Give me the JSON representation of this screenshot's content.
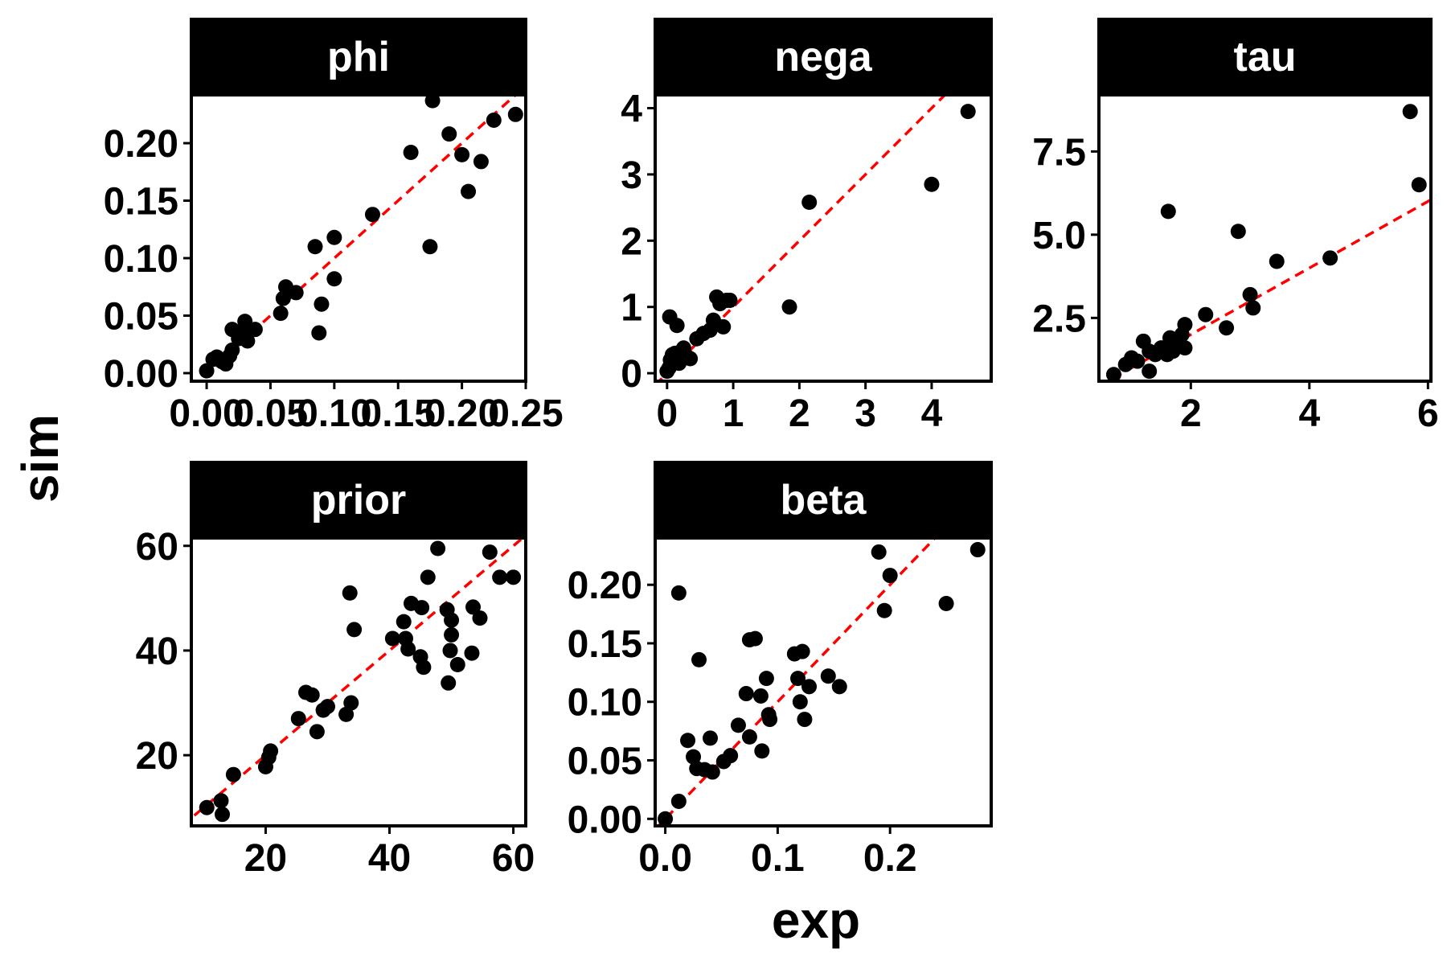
{
  "chart_data": {
    "type": "scatter",
    "xlabel": "exp",
    "ylabel": "sim",
    "colors": {
      "points": "#000000",
      "reference_line": "#ff0000",
      "strip": "#000000",
      "strip_text": "#ffffff"
    },
    "reference_line": "identity (dashed)",
    "grid": false,
    "panels": [
      {
        "title": "phi",
        "xlim": [
          -0.012,
          0.25
        ],
        "ylim": [
          -0.007,
          0.242
        ],
        "xticks": [
          "0.00",
          "0.05",
          "0.10",
          "0.15",
          "0.20",
          "0.25"
        ],
        "yticks": [
          "0.00",
          "0.05",
          "0.10",
          "0.15",
          "0.20"
        ],
        "points": [
          [
            0.0,
            0.002
          ],
          [
            0.005,
            0.012
          ],
          [
            0.008,
            0.014
          ],
          [
            0.012,
            0.01
          ],
          [
            0.015,
            0.008
          ],
          [
            0.018,
            0.015
          ],
          [
            0.02,
            0.02
          ],
          [
            0.02,
            0.038
          ],
          [
            0.025,
            0.03
          ],
          [
            0.028,
            0.035
          ],
          [
            0.03,
            0.045
          ],
          [
            0.032,
            0.028
          ],
          [
            0.038,
            0.038
          ],
          [
            0.058,
            0.052
          ],
          [
            0.06,
            0.065
          ],
          [
            0.062,
            0.075
          ],
          [
            0.07,
            0.07
          ],
          [
            0.085,
            0.11
          ],
          [
            0.088,
            0.035
          ],
          [
            0.09,
            0.06
          ],
          [
            0.1,
            0.118
          ],
          [
            0.1,
            0.082
          ],
          [
            0.13,
            0.138
          ],
          [
            0.16,
            0.192
          ],
          [
            0.175,
            0.11
          ],
          [
            0.177,
            0.237
          ],
          [
            0.19,
            0.208
          ],
          [
            0.2,
            0.19
          ],
          [
            0.205,
            0.158
          ],
          [
            0.215,
            0.184
          ],
          [
            0.225,
            0.22
          ],
          [
            0.242,
            0.225
          ]
        ]
      },
      {
        "title": "nega",
        "xlim": [
          -0.18,
          4.9
        ],
        "ylim": [
          -0.12,
          4.2
        ],
        "xticks": [
          "0",
          "1",
          "2",
          "3",
          "4"
        ],
        "yticks": [
          "0",
          "1",
          "2",
          "3",
          "4"
        ],
        "points": [
          [
            0.0,
            0.03
          ],
          [
            0.03,
            0.08
          ],
          [
            0.05,
            0.2
          ],
          [
            0.08,
            0.28
          ],
          [
            0.04,
            0.85
          ],
          [
            0.15,
            0.72
          ],
          [
            0.12,
            0.3
          ],
          [
            0.18,
            0.15
          ],
          [
            0.2,
            0.32
          ],
          [
            0.25,
            0.38
          ],
          [
            0.3,
            0.25
          ],
          [
            0.35,
            0.22
          ],
          [
            0.45,
            0.52
          ],
          [
            0.55,
            0.6
          ],
          [
            0.65,
            0.65
          ],
          [
            0.7,
            0.8
          ],
          [
            0.75,
            1.15
          ],
          [
            0.8,
            1.05
          ],
          [
            0.85,
            0.7
          ],
          [
            0.9,
            1.1
          ],
          [
            0.95,
            1.1
          ],
          [
            1.85,
            1.0
          ],
          [
            2.15,
            2.58
          ],
          [
            4.0,
            2.85
          ],
          [
            4.55,
            3.95
          ]
        ]
      },
      {
        "title": "tau",
        "xlim": [
          0.45,
          6.05
        ],
        "ylim": [
          0.6,
          9.2
        ],
        "xticks": [
          "2",
          "4",
          "6"
        ],
        "yticks": [
          "2.5",
          "5.0",
          "7.5"
        ],
        "points": [
          [
            0.7,
            0.8
          ],
          [
            0.9,
            1.1
          ],
          [
            1.0,
            1.3
          ],
          [
            1.1,
            1.2
          ],
          [
            1.2,
            1.8
          ],
          [
            1.3,
            1.5
          ],
          [
            1.3,
            0.9
          ],
          [
            1.4,
            1.4
          ],
          [
            1.5,
            1.6
          ],
          [
            1.6,
            1.4
          ],
          [
            1.65,
            1.9
          ],
          [
            1.7,
            1.5
          ],
          [
            1.75,
            1.8
          ],
          [
            1.8,
            1.7
          ],
          [
            1.85,
            2.0
          ],
          [
            1.9,
            2.3
          ],
          [
            1.9,
            1.6
          ],
          [
            2.25,
            2.6
          ],
          [
            2.6,
            2.2
          ],
          [
            1.62,
            5.7
          ],
          [
            2.8,
            5.1
          ],
          [
            3.0,
            3.2
          ],
          [
            3.05,
            2.8
          ],
          [
            3.45,
            4.2
          ],
          [
            4.35,
            4.3
          ],
          [
            5.7,
            8.7
          ],
          [
            5.85,
            6.5
          ]
        ]
      },
      {
        "title": "prior",
        "xlim": [
          8.0,
          62.0
        ],
        "ylim": [
          6.5,
          61.5
        ],
        "xticks": [
          "20",
          "40",
          "60"
        ],
        "yticks": [
          "20",
          "40",
          "60"
        ],
        "points": [
          [
            10.5,
            10.0
          ],
          [
            12.8,
            11.3
          ],
          [
            13.0,
            8.7
          ],
          [
            14.8,
            16.3
          ],
          [
            20.0,
            17.8
          ],
          [
            20.5,
            19.6
          ],
          [
            20.8,
            20.8
          ],
          [
            25.3,
            27.0
          ],
          [
            26.5,
            32.0
          ],
          [
            27.5,
            31.5
          ],
          [
            28.3,
            24.5
          ],
          [
            29.3,
            28.6
          ],
          [
            30.0,
            29.3
          ],
          [
            33.0,
            27.8
          ],
          [
            33.6,
            51.0
          ],
          [
            33.8,
            30.0
          ],
          [
            34.3,
            44.0
          ],
          [
            40.5,
            42.3
          ],
          [
            42.3,
            45.5
          ],
          [
            42.6,
            42.3
          ],
          [
            43.0,
            40.3
          ],
          [
            43.5,
            49.0
          ],
          [
            45.0,
            38.8
          ],
          [
            45.2,
            48.2
          ],
          [
            45.5,
            36.8
          ],
          [
            46.2,
            54.0
          ],
          [
            47.8,
            59.5
          ],
          [
            49.3,
            47.8
          ],
          [
            49.5,
            33.8
          ],
          [
            49.8,
            40.0
          ],
          [
            50.0,
            45.8
          ],
          [
            50.0,
            43.0
          ],
          [
            51.0,
            37.3
          ],
          [
            53.3,
            39.5
          ],
          [
            53.5,
            48.3
          ],
          [
            54.6,
            46.2
          ],
          [
            56.2,
            58.8
          ],
          [
            57.8,
            54.0
          ],
          [
            60.0,
            54.0
          ]
        ]
      },
      {
        "title": "beta",
        "xlim": [
          -0.009,
          0.29
        ],
        "ylim": [
          -0.006,
          0.24
        ],
        "xticks": [
          "0.0",
          "0.1",
          "0.2"
        ],
        "yticks": [
          "0.00",
          "0.05",
          "0.10",
          "0.15",
          "0.20"
        ],
        "points": [
          [
            0.0,
            0.0
          ],
          [
            0.012,
            0.015
          ],
          [
            0.012,
            0.193
          ],
          [
            0.02,
            0.067
          ],
          [
            0.025,
            0.053
          ],
          [
            0.028,
            0.043
          ],
          [
            0.03,
            0.136
          ],
          [
            0.035,
            0.042
          ],
          [
            0.04,
            0.069
          ],
          [
            0.042,
            0.04
          ],
          [
            0.052,
            0.049
          ],
          [
            0.058,
            0.054
          ],
          [
            0.065,
            0.08
          ],
          [
            0.072,
            0.107
          ],
          [
            0.075,
            0.153
          ],
          [
            0.075,
            0.07
          ],
          [
            0.08,
            0.154
          ],
          [
            0.085,
            0.105
          ],
          [
            0.086,
            0.058
          ],
          [
            0.09,
            0.12
          ],
          [
            0.092,
            0.089
          ],
          [
            0.093,
            0.085
          ],
          [
            0.115,
            0.141
          ],
          [
            0.118,
            0.12
          ],
          [
            0.12,
            0.1
          ],
          [
            0.122,
            0.143
          ],
          [
            0.124,
            0.085
          ],
          [
            0.128,
            0.113
          ],
          [
            0.145,
            0.122
          ],
          [
            0.155,
            0.113
          ],
          [
            0.19,
            0.228
          ],
          [
            0.195,
            0.178
          ],
          [
            0.2,
            0.208
          ],
          [
            0.25,
            0.184
          ],
          [
            0.278,
            0.23
          ]
        ]
      }
    ]
  }
}
